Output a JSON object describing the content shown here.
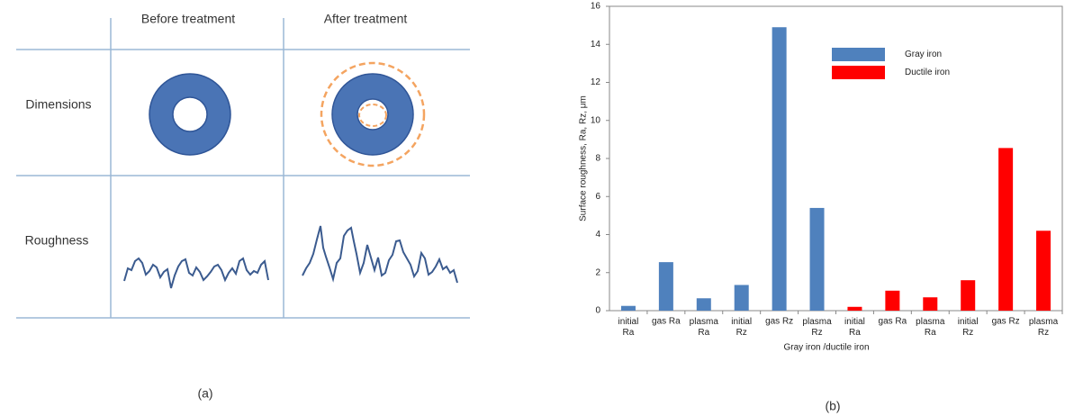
{
  "diagram": {
    "columns": [
      "Before treatment",
      "After treatment"
    ],
    "rows": [
      "Dimensions",
      "Roughness"
    ],
    "caption": "(a)"
  },
  "chart_data": {
    "type": "bar",
    "caption": "(b)",
    "x_label": "Gray iron /ductile iron",
    "y_label": "Surface roughness, Ra, Rz, μm",
    "categories": [
      "initial\nRa",
      "gas Ra",
      "plasma\nRa",
      "initial\nRz",
      "gas Rz",
      "plasma\nRz",
      "initial\nRa",
      "gas Ra",
      "plasma\nRa",
      "initial\nRz",
      "gas Rz",
      "plasma\nRz"
    ],
    "series": [
      {
        "name": "Gray  iron",
        "color": "#4f81bd",
        "values": [
          0.25,
          2.55,
          0.65,
          1.35,
          14.9,
          5.4,
          null,
          null,
          null,
          null,
          null,
          null
        ]
      },
      {
        "name": "Ductile  iron",
        "color": "#ff0000",
        "values": [
          null,
          null,
          null,
          null,
          null,
          null,
          0.2,
          1.05,
          0.7,
          1.6,
          8.55,
          4.2
        ]
      }
    ],
    "ylim": [
      0,
      16
    ],
    "yticks": [
      0,
      2,
      4,
      6,
      8,
      10,
      12,
      14,
      16
    ],
    "grid": false
  }
}
